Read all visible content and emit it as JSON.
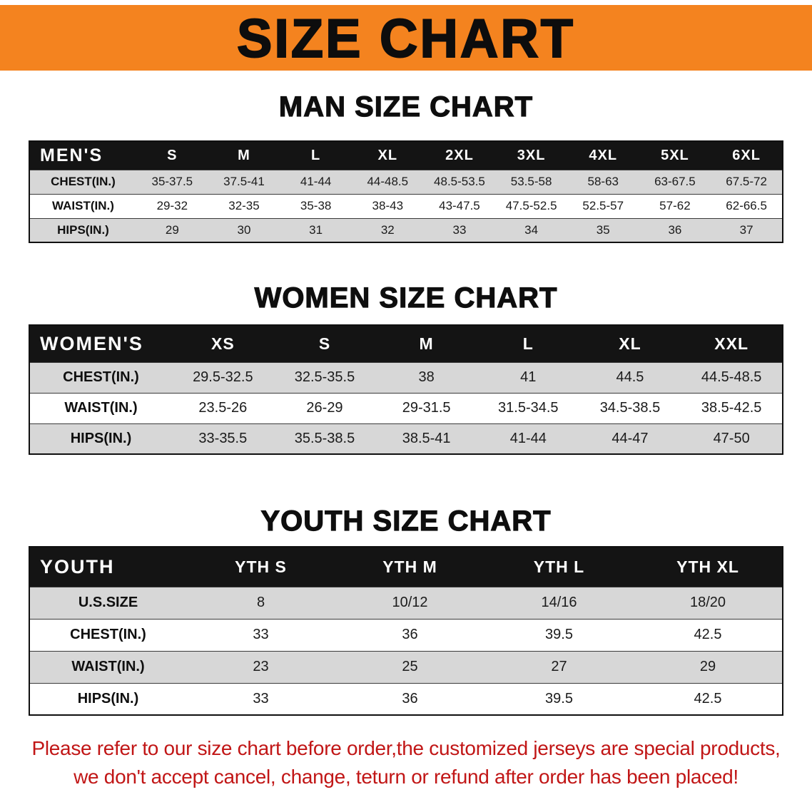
{
  "banner": {
    "title": "SIZE CHART",
    "bg_color": "#F4831F"
  },
  "sections": [
    {
      "heading": "MAN SIZE CHART",
      "table": {
        "header": [
          "MEN'S",
          "S",
          "M",
          "L",
          "XL",
          "2XL",
          "3XL",
          "4XL",
          "5XL",
          "6XL"
        ],
        "rows": [
          {
            "label": "CHEST(IN.)",
            "values": [
              "35-37.5",
              "37.5-41",
              "41-44",
              "44-48.5",
              "48.5-53.5",
              "53.5-58",
              "58-63",
              "63-67.5",
              "67.5-72"
            ]
          },
          {
            "label": "WAIST(IN.)",
            "values": [
              "29-32",
              "32-35",
              "35-38",
              "38-43",
              "43-47.5",
              "47.5-52.5",
              "52.5-57",
              "57-62",
              "62-66.5"
            ]
          },
          {
            "label": "HIPS(IN.)",
            "values": [
              "29",
              "30",
              "31",
              "32",
              "33",
              "34",
              "35",
              "36",
              "37"
            ]
          }
        ]
      }
    },
    {
      "heading": "WOMEN SIZE CHART",
      "table": {
        "header": [
          "WOMEN'S",
          "XS",
          "S",
          "M",
          "L",
          "XL",
          "XXL"
        ],
        "rows": [
          {
            "label": "CHEST(IN.)",
            "values": [
              "29.5-32.5",
              "32.5-35.5",
              "38",
              "41",
              "44.5",
              "44.5-48.5"
            ]
          },
          {
            "label": "WAIST(IN.)",
            "values": [
              "23.5-26",
              "26-29",
              "29-31.5",
              "31.5-34.5",
              "34.5-38.5",
              "38.5-42.5"
            ]
          },
          {
            "label": "HIPS(IN.)",
            "values": [
              "33-35.5",
              "35.5-38.5",
              "38.5-41",
              "41-44",
              "44-47",
              "47-50"
            ]
          }
        ]
      }
    },
    {
      "heading": "YOUTH SIZE CHART",
      "table": {
        "header": [
          "YOUTH",
          "YTH S",
          "YTH M",
          "YTH L",
          "YTH XL"
        ],
        "rows": [
          {
            "label": "U.S.SIZE",
            "values": [
              "8",
              "10/12",
              "14/16",
              "18/20"
            ]
          },
          {
            "label": "CHEST(IN.)",
            "values": [
              "33",
              "36",
              "39.5",
              "42.5"
            ]
          },
          {
            "label": "WAIST(IN.)",
            "values": [
              "23",
              "25",
              "27",
              "29"
            ]
          },
          {
            "label": "HIPS(IN.)",
            "values": [
              "33",
              "36",
              "39.5",
              "42.5"
            ]
          }
        ]
      }
    }
  ],
  "disclaimer": {
    "color": "#C11616",
    "lines": [
      "Please refer to our size chart before order,the customized jerseys are special products,",
      "we don't accept cancel, change, teturn or refund after order has been placed!"
    ]
  }
}
